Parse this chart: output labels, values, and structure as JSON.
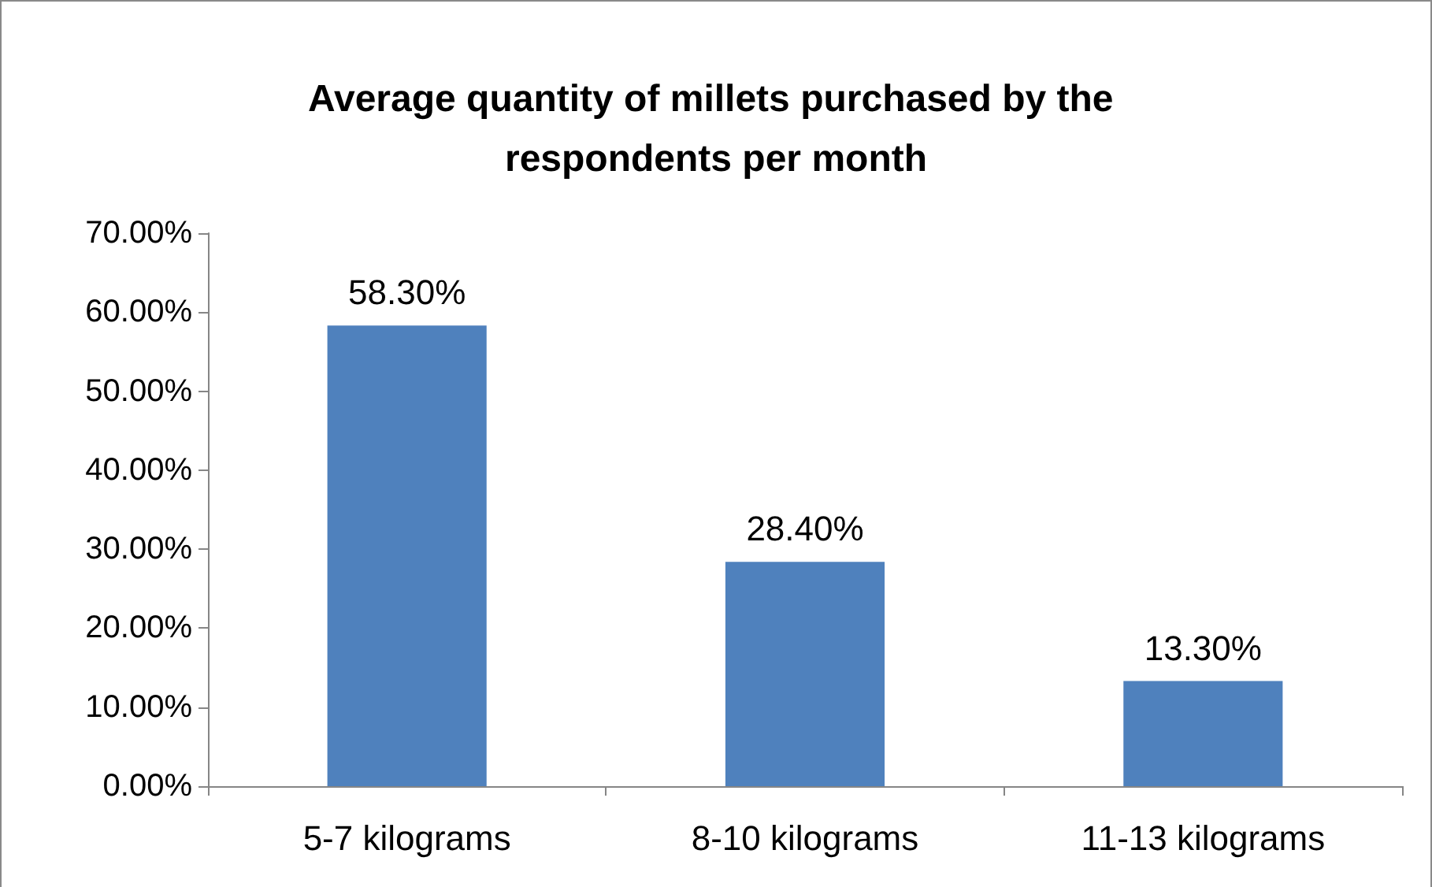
{
  "chart_data": {
    "type": "bar",
    "title": "Average quantity of millets purchased by the respondents per month",
    "categories": [
      "5-7 kilograms",
      "8-10 kilograms",
      "11-13 kilograms"
    ],
    "values": [
      58.3,
      28.4,
      13.3
    ],
    "value_labels": [
      "58.30%",
      "28.40%",
      "13.30%"
    ],
    "color": "#4f81bd",
    "ylim": [
      0,
      70
    ],
    "yticks": [
      {
        "value": 0,
        "label": "0.00%"
      },
      {
        "value": 10,
        "label": "10.00%"
      },
      {
        "value": 20,
        "label": "20.00%"
      },
      {
        "value": 30,
        "label": "30.00%"
      },
      {
        "value": 40,
        "label": "40.00%"
      },
      {
        "value": 50,
        "label": "50.00%"
      },
      {
        "value": 60,
        "label": "60.00%"
      },
      {
        "value": 70,
        "label": "70.00%"
      }
    ],
    "grid": false
  }
}
